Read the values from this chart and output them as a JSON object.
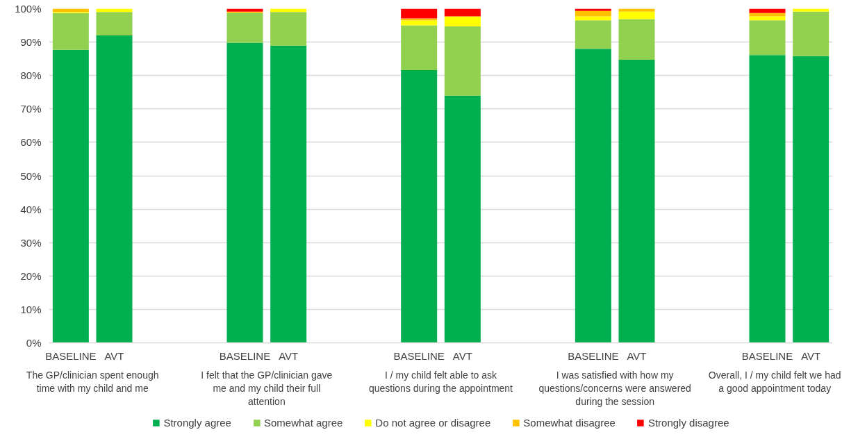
{
  "chart_data": {
    "type": "bar",
    "stacked": true,
    "categories": [
      "BASELINE",
      "AVT",
      null,
      null,
      "BASELINE",
      "AVT",
      null,
      null,
      "BASELINE",
      "AVT",
      null,
      null,
      "BASELINE",
      "AVT",
      null,
      null,
      "BASELINE",
      "AVT"
    ],
    "annotations": [
      "The GP/clinician spent enough time with my child and me",
      "I felt that the GP/clinician gave me and my child their full attention",
      "I / my child felt able to ask questions during the appointment",
      "I was satisfied with how my questions/concerns were answered during the session",
      "Overall, I / my child felt we had a good appointment today"
    ],
    "series": [
      {
        "name": "Strongly agree",
        "color": "#00b050",
        "values": [
          87.7,
          92.0,
          null,
          null,
          89.8,
          88.9,
          null,
          null,
          81.6,
          73.9,
          null,
          null,
          88.0,
          84.7,
          null,
          null,
          86.1,
          85.8
        ]
      },
      {
        "name": "Somewhat agree",
        "color": "#92d050",
        "values": [
          11.0,
          7.0,
          null,
          null,
          8.9,
          10.1,
          null,
          null,
          13.4,
          20.8,
          null,
          null,
          8.5,
          12.2,
          null,
          null,
          10.4,
          13.3
        ]
      },
      {
        "name": "Do not agree or disagree",
        "color": "#ffff00",
        "values": [
          0.3,
          1.0,
          null,
          null,
          0,
          1.0,
          null,
          null,
          1.5,
          3.0,
          null,
          null,
          1.2,
          2.2,
          null,
          null,
          1.2,
          0.9
        ]
      },
      {
        "name": "Somewhat disagree",
        "color": "#ffc000",
        "values": [
          1.0,
          0,
          null,
          null,
          0.4,
          0,
          null,
          null,
          0.6,
          0,
          null,
          null,
          1.6,
          0.9,
          null,
          null,
          1.0,
          0
        ]
      },
      {
        "name": "Strongly disagree",
        "color": "#ff0000",
        "values": [
          0,
          0,
          null,
          null,
          0.9,
          0,
          null,
          null,
          2.9,
          2.3,
          null,
          null,
          0.7,
          0,
          null,
          null,
          1.3,
          0
        ]
      }
    ],
    "ylim": [
      0,
      100
    ],
    "yticks": [
      {
        "value": 0,
        "label": "0%"
      },
      {
        "value": 10,
        "label": "10%"
      },
      {
        "value": 20,
        "label": "20%"
      },
      {
        "value": 30,
        "label": "30%"
      },
      {
        "value": 40,
        "label": "40%"
      },
      {
        "value": 50,
        "label": "50%"
      },
      {
        "value": 60,
        "label": "60%"
      },
      {
        "value": 70,
        "label": "70%"
      },
      {
        "value": 80,
        "label": "80%"
      },
      {
        "value": 90,
        "label": "90%"
      },
      {
        "value": 100,
        "label": "100%"
      }
    ],
    "grid": "y",
    "legend": "bottom"
  }
}
